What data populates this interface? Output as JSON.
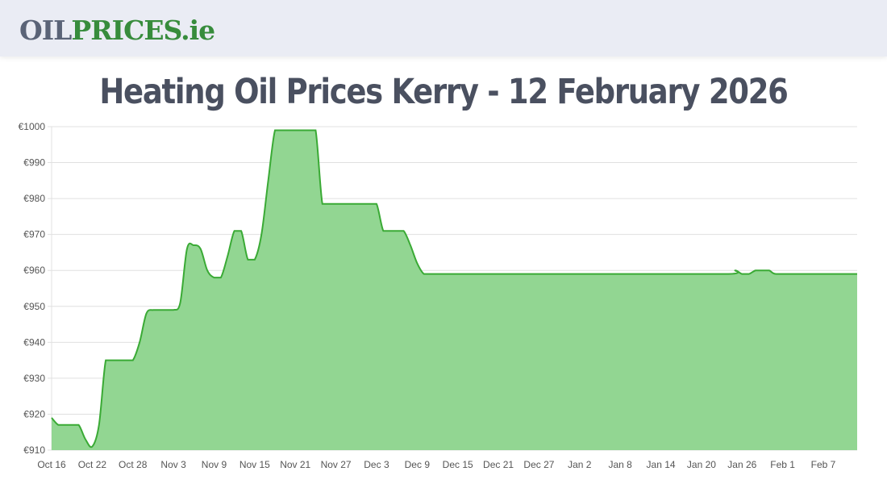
{
  "header": {
    "logo_part1": "OIL",
    "logo_part2": "PRICES.ie",
    "logo_colors": {
      "part1": "#5a6377",
      "part2": "#378c3c"
    }
  },
  "page": {
    "title": "Heating Oil Prices Kerry - 12 February 2026"
  },
  "chart_data": {
    "type": "area",
    "title": "Heating Oil Prices Kerry - 12 February 2026",
    "xlabel": "",
    "ylabel": "",
    "ylim": [
      910,
      1000
    ],
    "y_ticks": [
      "€1000",
      "€990",
      "€980",
      "€970",
      "€960",
      "€950",
      "€940",
      "€930",
      "€920",
      "€910"
    ],
    "x_ticks": [
      "Oct 16",
      "Oct 22",
      "Oct 28",
      "Nov 3",
      "Nov 9",
      "Nov 15",
      "Nov 21",
      "Nov 27",
      "Dec 3",
      "Dec 9",
      "Dec 15",
      "Dec 21",
      "Dec 27",
      "Jan 2",
      "Jan 8",
      "Jan 14",
      "Jan 20",
      "Jan 26",
      "Feb 1",
      "Feb 7"
    ],
    "grid": "horizontal",
    "legend": "none",
    "colors": {
      "line": "#3aaa35",
      "fill": "#92d692",
      "grid": "#e0e0e0"
    },
    "series": [
      {
        "name": "Heating Oil Price (Kerry)",
        "x_day_offsets_from_oct16": [
          0,
          1,
          2,
          3,
          4,
          5,
          6,
          7,
          8,
          9,
          10,
          11,
          12,
          13,
          14,
          15,
          16,
          17,
          18,
          19,
          20,
          21,
          22,
          23,
          24,
          25,
          26,
          27,
          28,
          29,
          30,
          31,
          32,
          33,
          34,
          35,
          36,
          37,
          38,
          39,
          40,
          41,
          42,
          43,
          44,
          45,
          46,
          47,
          48,
          49,
          50,
          51,
          52,
          53,
          54,
          55,
          56,
          58,
          70,
          85,
          100,
          101,
          102,
          103,
          104,
          105,
          106,
          107,
          110,
          119
        ],
        "values": [
          919,
          917,
          917,
          917,
          917,
          913,
          911,
          917,
          935,
          935,
          935,
          935,
          935,
          940,
          948,
          949,
          949,
          949,
          949,
          951,
          966,
          967,
          966,
          960,
          958,
          958,
          964,
          971,
          971,
          963,
          963,
          970,
          985,
          999,
          999,
          999,
          999,
          999,
          999,
          999,
          978.5,
          978.5,
          978.5,
          978.5,
          978.5,
          978.5,
          978.5,
          978.5,
          978.5,
          971,
          971,
          971,
          971,
          967,
          962,
          959,
          959,
          959,
          959,
          959,
          959,
          960,
          959,
          959,
          960,
          960,
          960,
          959,
          959,
          959
        ]
      }
    ]
  }
}
